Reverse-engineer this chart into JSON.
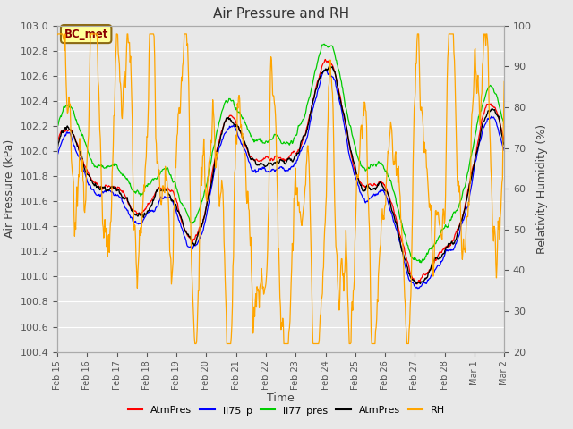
{
  "title": "Air Pressure and RH",
  "xlabel": "Time",
  "ylabel_left": "Air Pressure (kPa)",
  "ylabel_right": "Relativity Humidity (%)",
  "ylim_left": [
    100.4,
    103.0
  ],
  "ylim_right": [
    20,
    100
  ],
  "yticks_left": [
    100.4,
    100.6,
    100.8,
    101.0,
    101.2,
    101.4,
    101.6,
    101.8,
    102.0,
    102.2,
    102.4,
    102.6,
    102.8,
    103.0
  ],
  "yticks_right": [
    20,
    30,
    40,
    50,
    60,
    70,
    80,
    90,
    100
  ],
  "colors": {
    "AtmPres_red": "#ff0000",
    "li75_p": "#0000ff",
    "li77_pres": "#00cc00",
    "AtmPres_black": "#000000",
    "RH": "#ffa500"
  },
  "annotation_text": "BC_met",
  "annotation_color": "#8b0000",
  "annotation_bg": "#ffff99",
  "annotation_border": "#8b6914",
  "background_color": "#e8e8e8",
  "grid_color": "#ffffff",
  "n_points": 800,
  "seed": 42,
  "xtick_labels": [
    "Feb 15",
    "Feb 16",
    "Feb 17",
    "Feb 18",
    "Feb 19",
    "Feb 20",
    "Feb 21",
    "Feb 22",
    "Feb 23",
    "Feb 24",
    "Feb 25",
    "Feb 26",
    "Feb 27",
    "Feb 28",
    "Mar 1",
    "Mar 2"
  ],
  "xtick_positions": [
    15,
    16,
    17,
    18,
    19,
    20,
    21,
    22,
    23,
    24,
    25,
    26,
    27,
    28,
    29,
    30
  ]
}
